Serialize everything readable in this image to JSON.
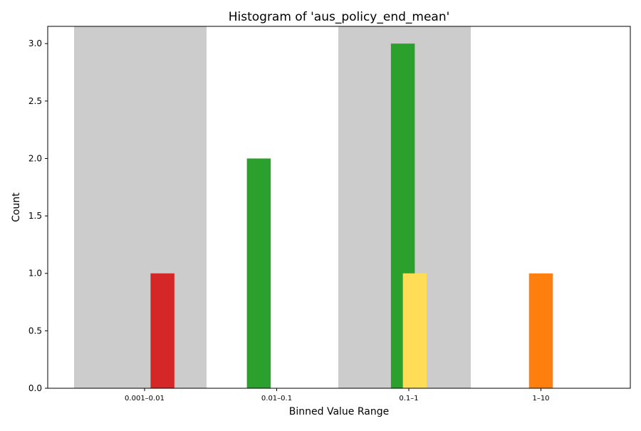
{
  "chart_data": {
    "type": "bar",
    "title": "Histogram of 'aus_policy_end_mean'",
    "xlabel": "Binned Value Range",
    "ylabel": "Count",
    "categories": [
      "0.001–0.01",
      "0.01–0.1",
      "0.1–1",
      "1–10"
    ],
    "ylim": [
      0,
      3.15
    ],
    "yticks": [
      0.0,
      0.5,
      1.0,
      1.5,
      2.0,
      2.5,
      3.0
    ],
    "ytick_labels": [
      "0.0",
      "0.5",
      "1.0",
      "1.5",
      "2.0",
      "2.5",
      "3.0"
    ],
    "shaded_categories": [
      0,
      2
    ],
    "shade_color": "#cccccc",
    "grid": false,
    "bars": [
      {
        "category": 0,
        "offset": 0.75,
        "value": 1,
        "color": "#d62728"
      },
      {
        "category": 1,
        "offset": -0.75,
        "value": 2,
        "color": "#2ca02c"
      },
      {
        "category": 2,
        "offset": -0.25,
        "value": 3,
        "color": "#2ca02c"
      },
      {
        "category": 2,
        "offset": 0.25,
        "value": 1,
        "color": "#ffdd57"
      },
      {
        "category": 3,
        "offset": 0.0,
        "value": 1,
        "color": "#ff7f0e"
      }
    ]
  }
}
